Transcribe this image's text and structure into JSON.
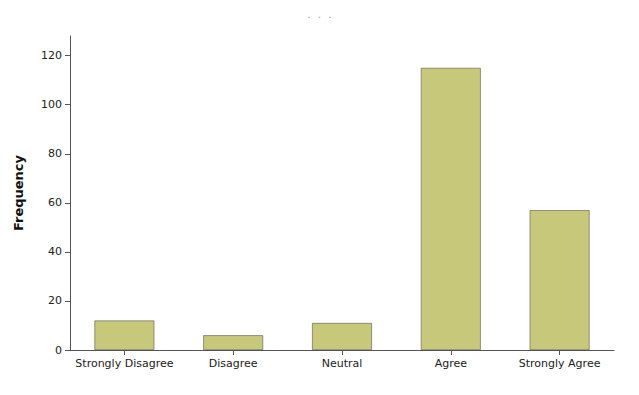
{
  "chart_data": {
    "type": "bar",
    "title": ".  .  .",
    "categories": [
      "Strongly Disagree",
      "Disagree",
      "Neutral",
      "Agree",
      "Strongly Agree"
    ],
    "values": [
      12,
      6,
      11,
      115,
      57
    ],
    "color": "#C8C87A",
    "ylabel": "Frequency",
    "ylim": [
      0,
      128
    ],
    "yticks": [
      0,
      20,
      40,
      60,
      80,
      100,
      120
    ],
    "grid": false
  }
}
